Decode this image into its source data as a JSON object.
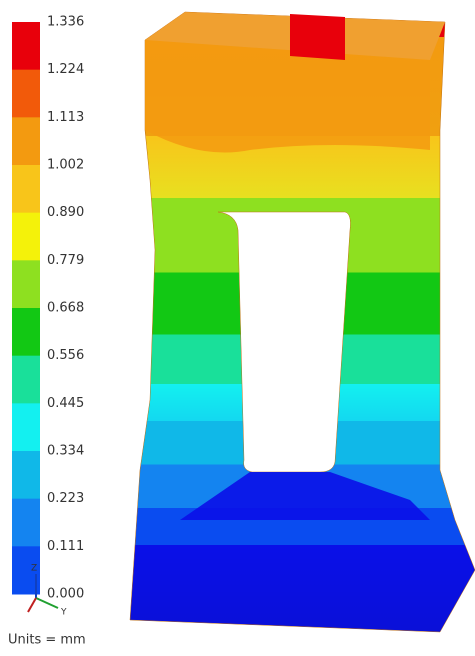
{
  "legend": {
    "labels": [
      "1.336",
      "1.224",
      "1.113",
      "1.002",
      "0.890",
      "0.779",
      "0.668",
      "0.556",
      "0.445",
      "0.334",
      "0.223",
      "0.111",
      "0.000"
    ],
    "colors": [
      "#e8000b",
      "#f25a0a",
      "#f39a10",
      "#f8c51a",
      "#f4f20a",
      "#8ee020",
      "#12c814",
      "#19e09a",
      "#13f0f0",
      "#10b8e8",
      "#1484f0",
      "#0a4cf0",
      "#0a10f0"
    ]
  },
  "units": "Units = mm",
  "triad": {
    "z": "Z",
    "y": "Y"
  }
}
